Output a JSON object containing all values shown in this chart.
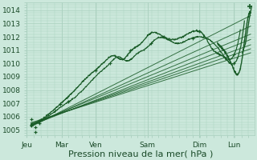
{
  "xlabel": "Pression niveau de la mer( hPa )",
  "bg_color": "#cce8dc",
  "grid_color": "#aad0bf",
  "line_color": "#1a5c28",
  "ylim": [
    1004.6,
    1014.6
  ],
  "yticks": [
    1005,
    1006,
    1007,
    1008,
    1009,
    1010,
    1011,
    1012,
    1013,
    1014
  ],
  "x_day_labels": [
    "Jeu",
    "Mar",
    "Ven",
    "Sam",
    "Dim",
    "Lun"
  ],
  "x_day_positions": [
    0.0,
    0.167,
    0.333,
    0.583,
    0.833,
    1.0
  ],
  "xlim": [
    0.0,
    1.1
  ],
  "font_color": "#1a4a28",
  "tick_fontsize": 6.5,
  "xlabel_fontsize": 8
}
